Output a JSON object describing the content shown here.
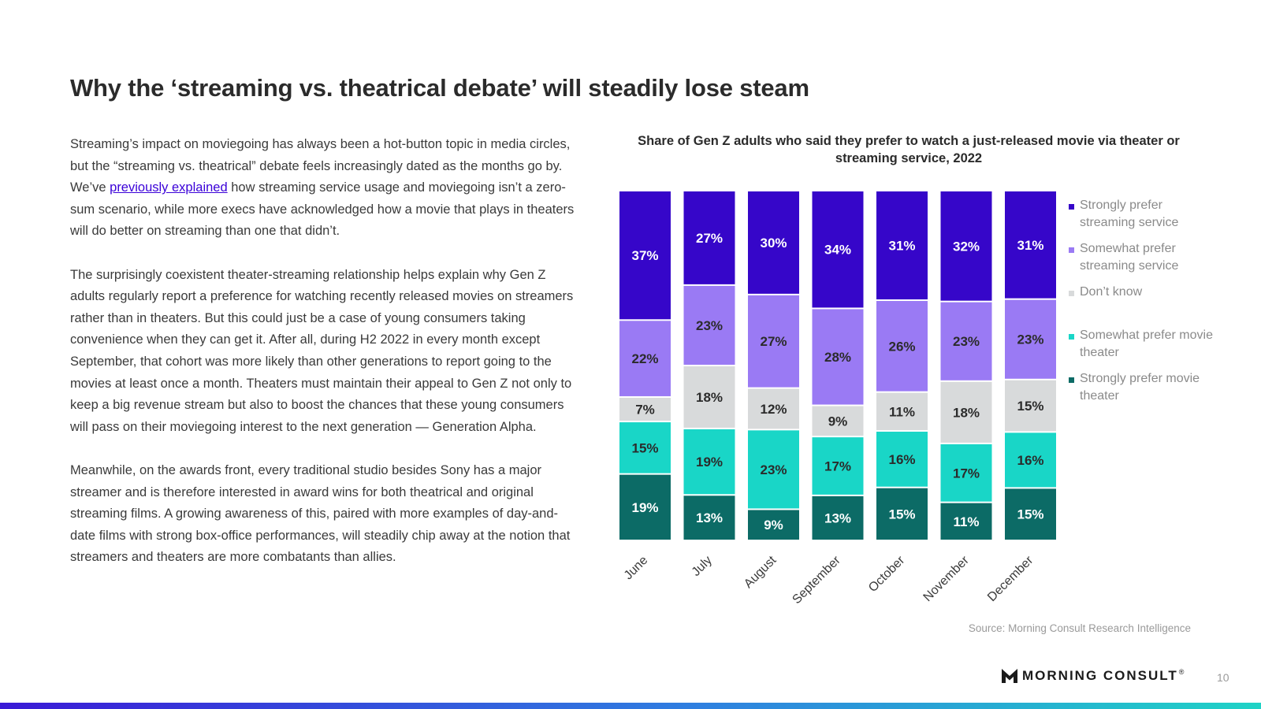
{
  "page": {
    "title": "Why the ‘streaming vs. theatrical debate’ will steadily lose steam",
    "paragraphs": [
      {
        "before_link": "Streaming’s impact on moviegoing has always been a hot-button topic in media circles, but the “streaming vs. theatrical” debate feels increasingly dated as the months go by. We’ve ",
        "link_text": "previously explained",
        "after_link": " how streaming service usage and moviegoing isn’t a zero-sum scenario, while more execs have acknowledged how a movie that plays in theaters will do better on streaming than one that didn’t."
      },
      {
        "text": "The surprisingly coexistent theater-streaming relationship helps explain why Gen Z adults regularly report a preference for watching recently released movies on streamers rather than in theaters. But this could just be a case of young consumers taking convenience when they can get it. After all, during H2 2022 in every month except September, that cohort was more likely than other generations to report going to the movies at least once a month. Theaters must maintain their appeal to Gen Z not only to keep a big revenue stream but also to boost the chances that these young consumers will pass on their moviegoing interest to the next generation — Generation Alpha."
      },
      {
        "text": "Meanwhile, on the awards front, every traditional studio besides Sony has a major streamer and is therefore interested in award wins for both theatrical and original streaming films. A growing awareness of this, paired with more examples of day-and-date films with strong box-office performances, will steadily chip away at the notion that streamers and theaters are more combatants than allies."
      }
    ],
    "source": "Source: Morning Consult Research Intelligence",
    "brand": "MORNING CONSULT",
    "brand_mark": "®",
    "page_number": "10",
    "colors": {
      "accent": "#3a00d8",
      "link": "#3a00d8"
    }
  },
  "chart_data": {
    "type": "bar",
    "stacked": true,
    "normalized": true,
    "title": "Share of Gen Z adults who said they prefer to watch a just-released movie via theater or streaming service, 2022",
    "categories": [
      "June",
      "July",
      "August",
      "September",
      "October",
      "November",
      "December"
    ],
    "series": [
      {
        "name": "Strongly prefer movie theater",
        "color": "#0c6b66",
        "label_color": "#ffffff",
        "values": [
          19,
          13,
          9,
          13,
          15,
          11,
          15
        ]
      },
      {
        "name": "Somewhat prefer movie theater",
        "color": "#19d6c7",
        "label_color": "#2b2b2b",
        "values": [
          15,
          19,
          23,
          17,
          16,
          17,
          16
        ]
      },
      {
        "name": "Don’t know",
        "color": "#d8dadb",
        "label_color": "#2b2b2b",
        "values": [
          7,
          18,
          12,
          9,
          11,
          18,
          15
        ]
      },
      {
        "name": "Somewhat prefer streaming service",
        "color": "#9a7af4",
        "label_color": "#2b2b2b",
        "values": [
          22,
          23,
          27,
          28,
          26,
          23,
          23
        ]
      },
      {
        "name": "Strongly prefer streaming service",
        "color": "#3606c9",
        "label_color": "#ffffff",
        "values": [
          37,
          27,
          30,
          34,
          31,
          32,
          31
        ]
      }
    ],
    "legend_order": [
      "Strongly prefer streaming service",
      "Somewhat prefer streaming service",
      "Don’t know",
      "Somewhat prefer movie theater",
      "Strongly prefer movie theater"
    ],
    "legend_position": "right",
    "value_suffix": "%",
    "x_tick_rotation": -45,
    "grid": false
  }
}
